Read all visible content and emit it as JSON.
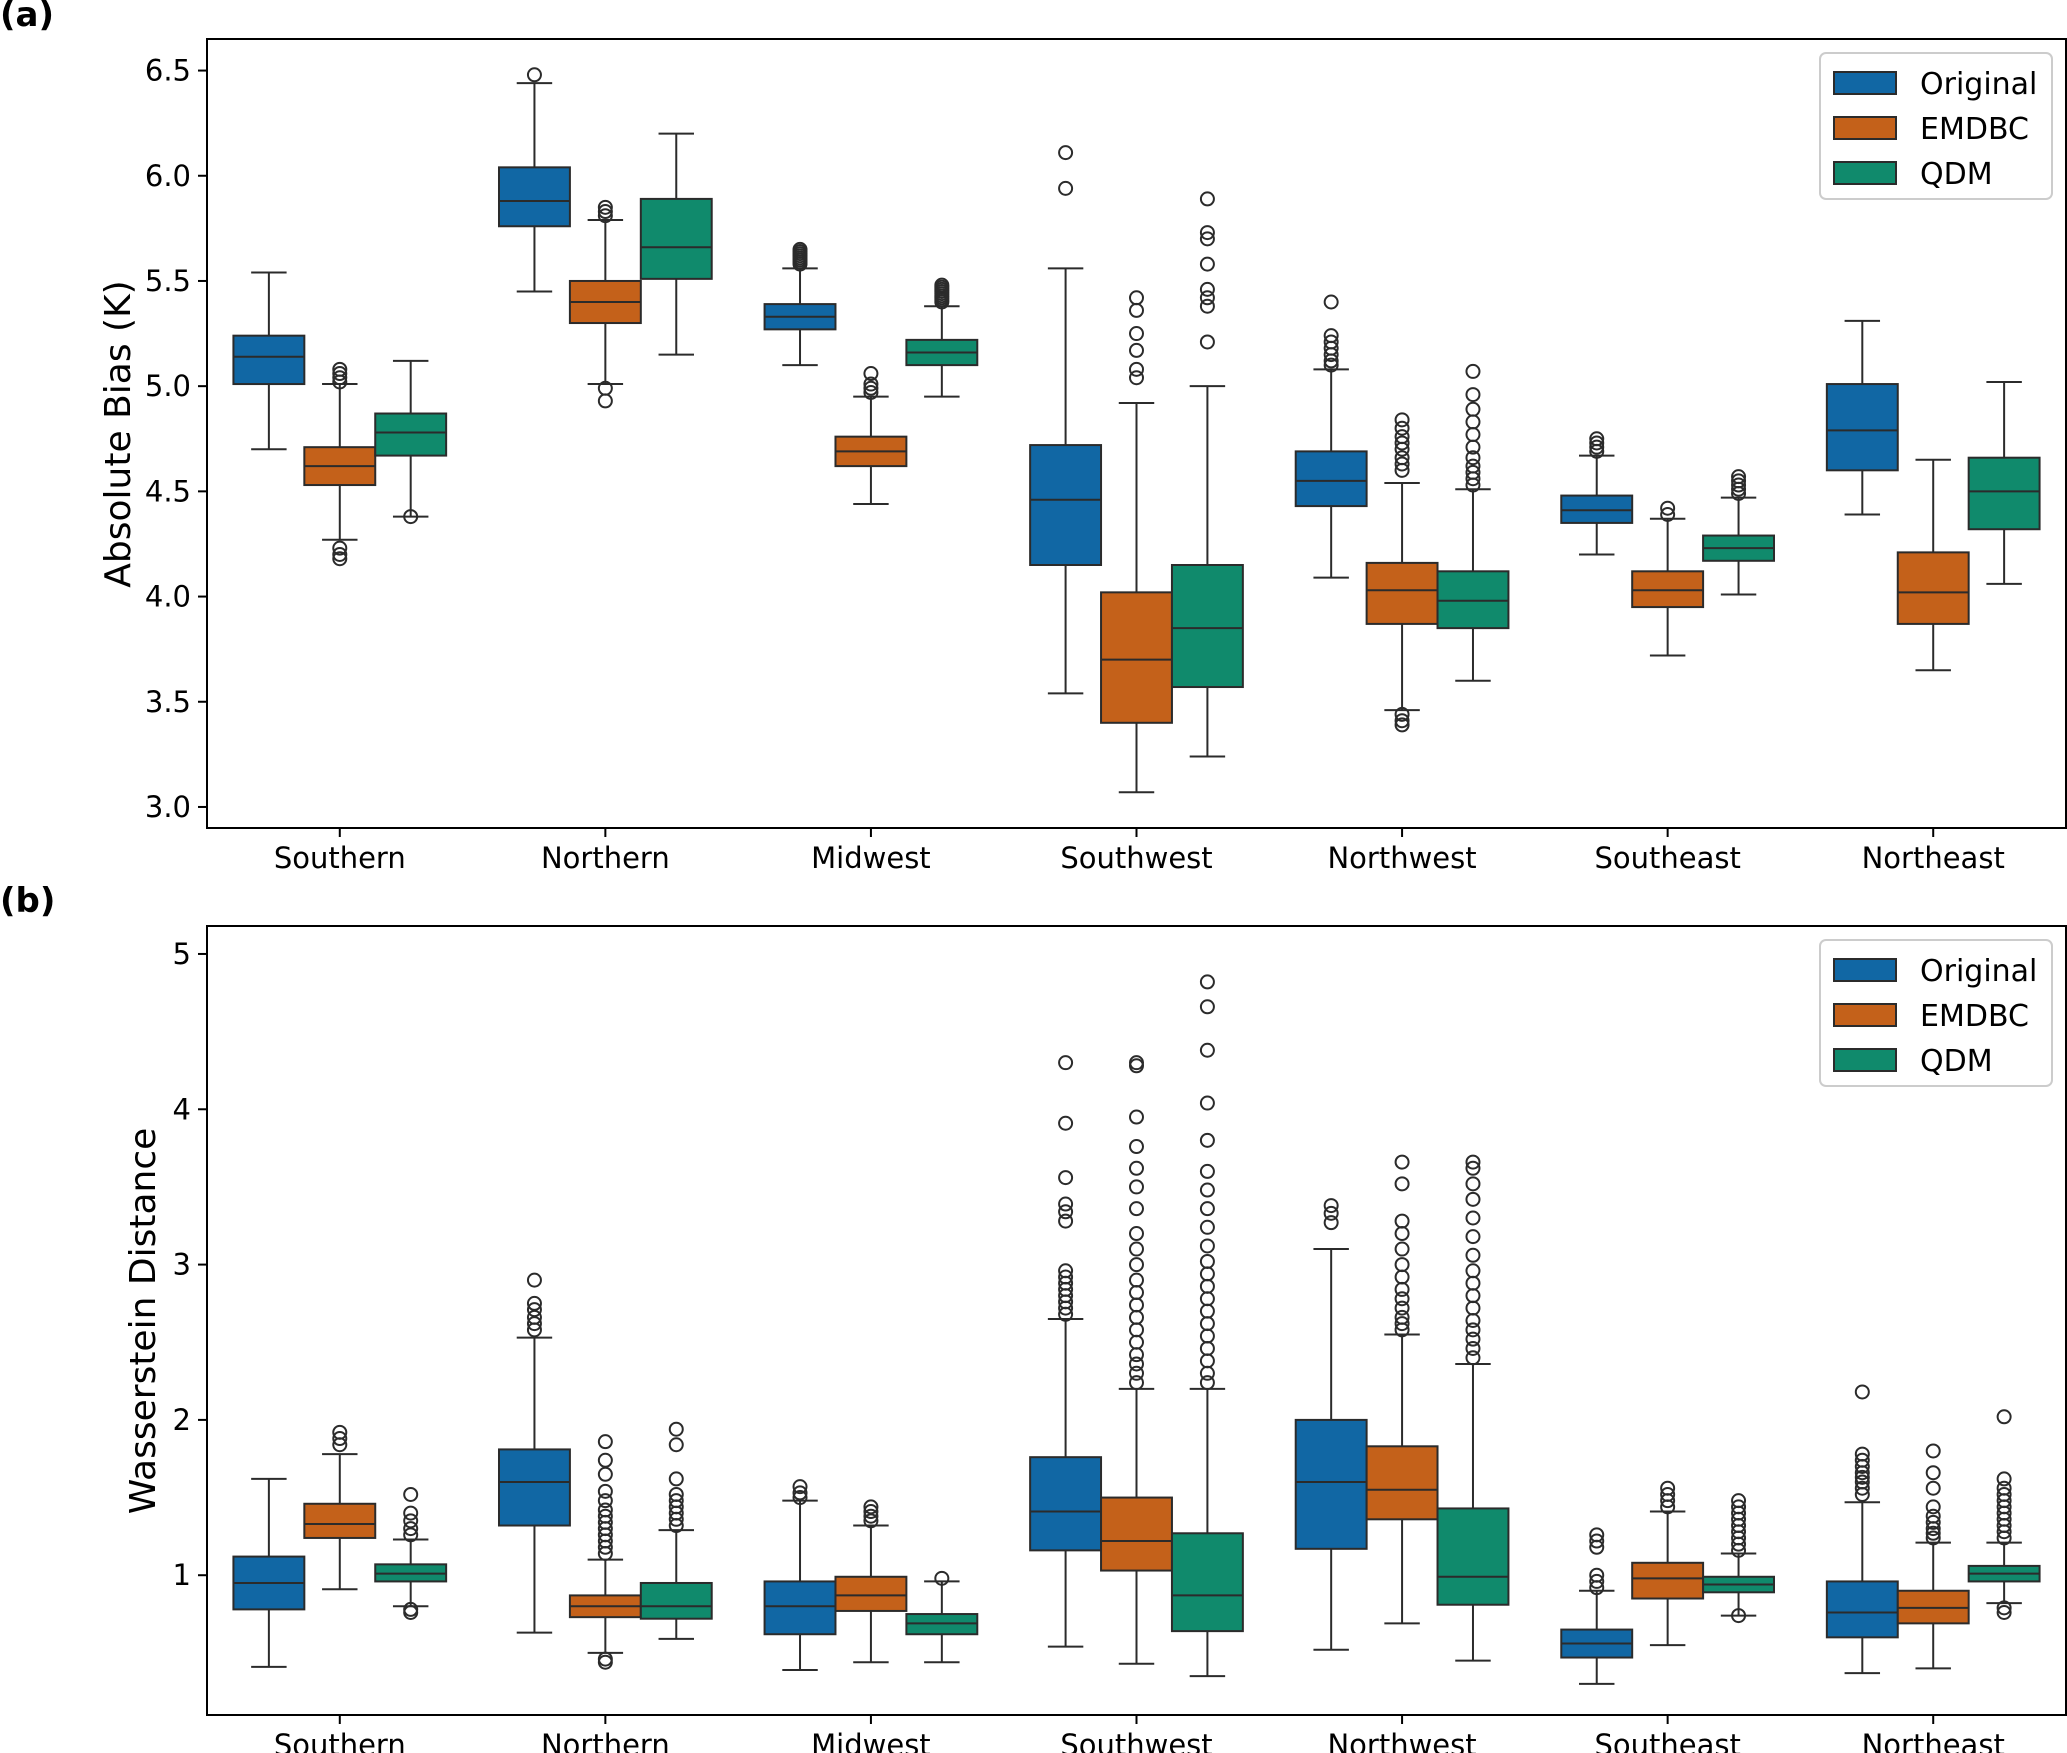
{
  "colors": {
    "Original": "#1167a4",
    "EMDBC": "#c4611a",
    "QDM": "#108a6c"
  },
  "chart_data": [
    {
      "type": "box",
      "panel": "(a)",
      "title": "",
      "xlabel": "",
      "ylabel": "Absolute Bias (K)",
      "ylim": [
        2.9,
        6.65
      ],
      "yticks": [
        3.0,
        3.5,
        4.0,
        4.5,
        5.0,
        5.5,
        6.0,
        6.5
      ],
      "tick_decimals": 1,
      "legend": {
        "position": "top-right",
        "entries": [
          "Original",
          "EMDBC",
          "QDM"
        ]
      },
      "categories": [
        "Southern",
        "Northern",
        "Midwest",
        "Southwest",
        "Northwest",
        "Southeast",
        "Northeast"
      ],
      "series": [
        {
          "name": "Original",
          "boxes": [
            {
              "min": 4.7,
              "q1": 5.01,
              "median": 5.14,
              "q3": 5.24,
              "max": 5.54,
              "fliers": []
            },
            {
              "min": 5.45,
              "q1": 5.76,
              "median": 5.88,
              "q3": 6.04,
              "max": 6.44,
              "fliers": [
                6.48
              ]
            },
            {
              "min": 5.1,
              "q1": 5.27,
              "median": 5.33,
              "q3": 5.39,
              "max": 5.56,
              "fliers": [
                5.58,
                5.59,
                5.6,
                5.61,
                5.62,
                5.63,
                5.64,
                5.65
              ]
            },
            {
              "min": 3.54,
              "q1": 4.15,
              "median": 4.46,
              "q3": 4.72,
              "max": 5.56,
              "fliers": [
                5.94,
                6.11
              ]
            },
            {
              "min": 4.09,
              "q1": 4.43,
              "median": 4.55,
              "q3": 4.69,
              "max": 5.08,
              "fliers": [
                5.1,
                5.12,
                5.15,
                5.18,
                5.21,
                5.24,
                5.4
              ]
            },
            {
              "min": 4.2,
              "q1": 4.35,
              "median": 4.41,
              "q3": 4.48,
              "max": 4.67,
              "fliers": [
                4.69,
                4.71,
                4.73,
                4.75
              ]
            },
            {
              "min": 4.39,
              "q1": 4.6,
              "median": 4.79,
              "q3": 5.01,
              "max": 5.31,
              "fliers": []
            }
          ]
        },
        {
          "name": "EMDBC",
          "boxes": [
            {
              "min": 4.27,
              "q1": 4.53,
              "median": 4.62,
              "q3": 4.71,
              "max": 5.01,
              "fliers": [
                4.18,
                4.2,
                4.23,
                5.02,
                5.04,
                5.06,
                5.08
              ]
            },
            {
              "min": 5.01,
              "q1": 5.3,
              "median": 5.4,
              "q3": 5.5,
              "max": 5.79,
              "fliers": [
                4.93,
                4.99,
                5.81,
                5.83,
                5.85
              ]
            },
            {
              "min": 4.44,
              "q1": 4.62,
              "median": 4.69,
              "q3": 4.76,
              "max": 4.95,
              "fliers": [
                4.97,
                4.99,
                5.01,
                5.06
              ]
            },
            {
              "min": 3.07,
              "q1": 3.4,
              "median": 3.7,
              "q3": 4.02,
              "max": 4.92,
              "fliers": [
                5.04,
                5.08,
                5.17,
                5.25,
                5.36,
                5.42
              ]
            },
            {
              "min": 3.46,
              "q1": 3.87,
              "median": 4.03,
              "q3": 4.16,
              "max": 4.54,
              "fliers": [
                3.39,
                3.41,
                3.44,
                4.6,
                4.63,
                4.66,
                4.7,
                4.73,
                4.76,
                4.8,
                4.84
              ]
            },
            {
              "min": 3.72,
              "q1": 3.95,
              "median": 4.03,
              "q3": 4.12,
              "max": 4.37,
              "fliers": [
                4.39,
                4.42
              ]
            },
            {
              "min": 3.65,
              "q1": 3.87,
              "median": 4.02,
              "q3": 4.21,
              "max": 4.65,
              "fliers": []
            }
          ]
        },
        {
          "name": "QDM",
          "boxes": [
            {
              "min": 4.38,
              "q1": 4.67,
              "median": 4.78,
              "q3": 4.87,
              "max": 5.12,
              "fliers": [
                4.38
              ]
            },
            {
              "min": 5.15,
              "q1": 5.51,
              "median": 5.66,
              "q3": 5.89,
              "max": 6.2,
              "fliers": []
            },
            {
              "min": 4.95,
              "q1": 5.1,
              "median": 5.16,
              "q3": 5.22,
              "max": 5.38,
              "fliers": [
                5.4,
                5.41,
                5.42,
                5.43,
                5.44,
                5.45,
                5.46,
                5.47,
                5.48
              ]
            },
            {
              "min": 3.24,
              "q1": 3.57,
              "median": 3.85,
              "q3": 4.15,
              "max": 5.0,
              "fliers": [
                5.21,
                5.38,
                5.42,
                5.46,
                5.58,
                5.7,
                5.73,
                5.89
              ]
            },
            {
              "min": 3.6,
              "q1": 3.85,
              "median": 3.98,
              "q3": 4.12,
              "max": 4.51,
              "fliers": [
                4.53,
                4.56,
                4.59,
                4.62,
                4.66,
                4.71,
                4.77,
                4.83,
                4.89,
                4.96,
                5.07
              ]
            },
            {
              "min": 4.01,
              "q1": 4.17,
              "median": 4.23,
              "q3": 4.29,
              "max": 4.47,
              "fliers": [
                4.49,
                4.51,
                4.53,
                4.55,
                4.57
              ]
            },
            {
              "min": 4.06,
              "q1": 4.32,
              "median": 4.5,
              "q3": 4.66,
              "max": 5.02,
              "fliers": []
            }
          ]
        }
      ]
    },
    {
      "type": "box",
      "panel": "(b)",
      "title": "",
      "xlabel": "",
      "ylabel": "Wasserstein Distance",
      "ylim": [
        0.1,
        5.18
      ],
      "yticks": [
        1,
        2,
        3,
        4,
        5
      ],
      "tick_decimals": 0,
      "legend": {
        "position": "top-right",
        "entries": [
          "Original",
          "EMDBC",
          "QDM"
        ]
      },
      "categories": [
        "Southern",
        "Northern",
        "Midwest",
        "Southwest",
        "Northwest",
        "Southeast",
        "Northeast"
      ],
      "series": [
        {
          "name": "Original",
          "boxes": [
            {
              "min": 0.41,
              "q1": 0.78,
              "median": 0.95,
              "q3": 1.12,
              "max": 1.62,
              "fliers": []
            },
            {
              "min": 0.63,
              "q1": 1.32,
              "median": 1.6,
              "q3": 1.81,
              "max": 2.53,
              "fliers": [
                2.58,
                2.62,
                2.66,
                2.71,
                2.75,
                2.9
              ]
            },
            {
              "min": 0.39,
              "q1": 0.62,
              "median": 0.8,
              "q3": 0.96,
              "max": 1.48,
              "fliers": [
                1.5,
                1.53,
                1.57
              ]
            },
            {
              "min": 0.54,
              "q1": 1.16,
              "median": 1.41,
              "q3": 1.76,
              "max": 2.65,
              "fliers": [
                2.68,
                2.72,
                2.76,
                2.8,
                2.84,
                2.88,
                2.92,
                2.96,
                3.28,
                3.34,
                3.39,
                3.56,
                3.91,
                4.3
              ]
            },
            {
              "min": 0.52,
              "q1": 1.17,
              "median": 1.6,
              "q3": 2.0,
              "max": 3.1,
              "fliers": [
                3.27,
                3.33,
                3.38
              ]
            },
            {
              "min": 0.3,
              "q1": 0.47,
              "median": 0.56,
              "q3": 0.65,
              "max": 0.9,
              "fliers": [
                0.92,
                0.96,
                1.0,
                1.18,
                1.22,
                1.26
              ]
            },
            {
              "min": 0.37,
              "q1": 0.6,
              "median": 0.76,
              "q3": 0.96,
              "max": 1.47,
              "fliers": [
                1.52,
                1.56,
                1.6,
                1.63,
                1.66,
                1.7,
                1.74,
                1.78,
                2.18
              ]
            }
          ]
        },
        {
          "name": "EMDBC",
          "boxes": [
            {
              "min": 0.91,
              "q1": 1.24,
              "median": 1.33,
              "q3": 1.46,
              "max": 1.78,
              "fliers": [
                1.84,
                1.88,
                1.92
              ]
            },
            {
              "min": 0.5,
              "q1": 0.73,
              "median": 0.8,
              "q3": 0.87,
              "max": 1.1,
              "fliers": [
                0.44,
                0.46,
                1.14,
                1.18,
                1.22,
                1.26,
                1.3,
                1.34,
                1.38,
                1.42,
                1.48,
                1.54,
                1.65,
                1.74,
                1.86
              ]
            },
            {
              "min": 0.44,
              "q1": 0.77,
              "median": 0.87,
              "q3": 0.99,
              "max": 1.32,
              "fliers": [
                1.35,
                1.38,
                1.41,
                1.44
              ]
            },
            {
              "min": 0.43,
              "q1": 1.03,
              "median": 1.22,
              "q3": 1.5,
              "max": 2.2,
              "fliers": [
                2.24,
                2.3,
                2.36,
                2.42,
                2.5,
                2.58,
                2.66,
                2.74,
                2.82,
                2.9,
                3.0,
                3.1,
                3.2,
                3.36,
                3.5,
                3.62,
                3.76,
                3.95,
                4.28,
                4.3
              ]
            },
            {
              "min": 0.69,
              "q1": 1.36,
              "median": 1.55,
              "q3": 1.83,
              "max": 2.55,
              "fliers": [
                2.58,
                2.62,
                2.66,
                2.72,
                2.78,
                2.84,
                2.92,
                3.0,
                3.1,
                3.2,
                3.28,
                3.52,
                3.66
              ]
            },
            {
              "min": 0.55,
              "q1": 0.85,
              "median": 0.98,
              "q3": 1.08,
              "max": 1.41,
              "fliers": [
                1.44,
                1.48,
                1.52,
                1.56
              ]
            },
            {
              "min": 0.4,
              "q1": 0.69,
              "median": 0.79,
              "q3": 0.9,
              "max": 1.21,
              "fliers": [
                1.24,
                1.27,
                1.3,
                1.34,
                1.38,
                1.44,
                1.56,
                1.66,
                1.8
              ]
            }
          ]
        },
        {
          "name": "QDM",
          "boxes": [
            {
              "min": 0.8,
              "q1": 0.96,
              "median": 1.01,
              "q3": 1.07,
              "max": 1.23,
              "fliers": [
                0.76,
                0.78,
                1.26,
                1.3,
                1.35,
                1.4,
                1.52
              ]
            },
            {
              "min": 0.59,
              "q1": 0.72,
              "median": 0.8,
              "q3": 0.95,
              "max": 1.29,
              "fliers": [
                1.32,
                1.36,
                1.4,
                1.44,
                1.48,
                1.52,
                1.62,
                1.84,
                1.94
              ]
            },
            {
              "min": 0.44,
              "q1": 0.62,
              "median": 0.69,
              "q3": 0.75,
              "max": 0.96,
              "fliers": [
                0.98
              ]
            },
            {
              "min": 0.35,
              "q1": 0.64,
              "median": 0.87,
              "q3": 1.27,
              "max": 2.2,
              "fliers": [
                2.24,
                2.3,
                2.38,
                2.46,
                2.54,
                2.62,
                2.7,
                2.78,
                2.86,
                2.94,
                3.02,
                3.12,
                3.24,
                3.36,
                3.48,
                3.6,
                3.8,
                4.04,
                4.38,
                4.66,
                4.82
              ]
            },
            {
              "min": 0.45,
              "q1": 0.81,
              "median": 0.99,
              "q3": 1.43,
              "max": 2.36,
              "fliers": [
                2.4,
                2.46,
                2.52,
                2.58,
                2.64,
                2.72,
                2.8,
                2.88,
                2.96,
                3.06,
                3.18,
                3.3,
                3.42,
                3.52,
                3.62,
                3.66
              ]
            },
            {
              "min": 0.74,
              "q1": 0.89,
              "median": 0.94,
              "q3": 0.99,
              "max": 1.14,
              "fliers": [
                0.74,
                1.16,
                1.2,
                1.24,
                1.28,
                1.32,
                1.36,
                1.4,
                1.44,
                1.48
              ]
            },
            {
              "min": 0.82,
              "q1": 0.96,
              "median": 1.01,
              "q3": 1.06,
              "max": 1.21,
              "fliers": [
                0.76,
                0.79,
                1.24,
                1.28,
                1.32,
                1.36,
                1.4,
                1.44,
                1.48,
                1.52,
                1.56,
                1.62,
                2.02
              ]
            }
          ]
        }
      ]
    }
  ]
}
